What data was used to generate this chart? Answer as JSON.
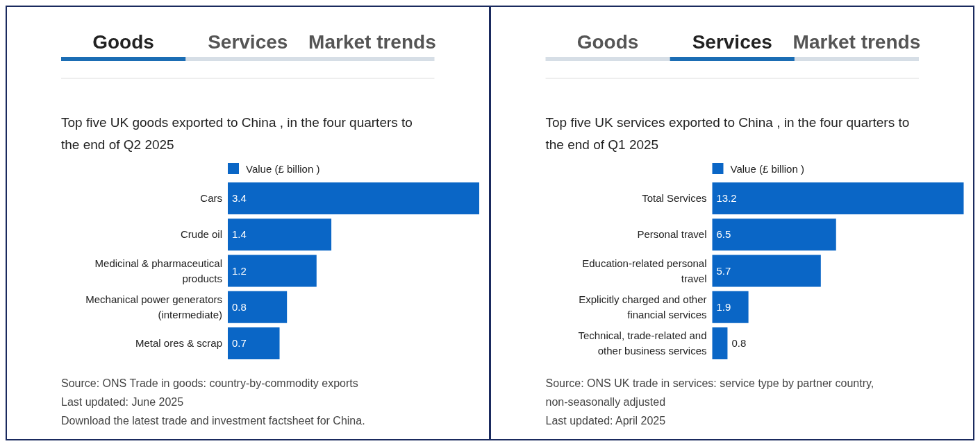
{
  "chart_data": [
    {
      "type": "bar",
      "orientation": "horizontal",
      "title": "Top five UK goods exported to China , in the four quarters to the end of Q2 2025",
      "categories": [
        "Cars",
        "Crude oil",
        "Medicinal & pharmaceutical products",
        "Mechanical power generators (intermediate)",
        "Metal ores & scrap"
      ],
      "series": [
        {
          "name": "Value (£ billion )",
          "color": "#0a66c6",
          "values": [
            3.4,
            1.4,
            1.2,
            0.8,
            0.7
          ]
        }
      ],
      "data_labels": true,
      "legend": "top",
      "annotations": [
        "Goods",
        "Services",
        "Market trends",
        "Source: ONS Trade in goods: country-by-commodity exports",
        "Last updated: June 2025",
        "Download the latest trade and investment factsheet for China."
      ]
    },
    {
      "type": "bar",
      "orientation": "horizontal",
      "title": "Top five UK services exported to China , in the four quarters to the end of Q1 2025",
      "categories": [
        "Total Services",
        "Personal travel",
        "Education-related personal travel",
        "Explicitly charged and other financial services",
        "Technical, trade-related and other business services"
      ],
      "series": [
        {
          "name": "Value (£ billion )",
          "color": "#0a66c6",
          "values": [
            13.2,
            6.5,
            5.7,
            1.9,
            0.8
          ]
        }
      ],
      "data_labels": true,
      "legend": "top",
      "annotations": [
        "Goods",
        "Services",
        "Market trends",
        "Source: ONS UK trade in services: service type by partner country, non-seasonally adjusted",
        "Last updated: April 2025"
      ]
    }
  ]
}
